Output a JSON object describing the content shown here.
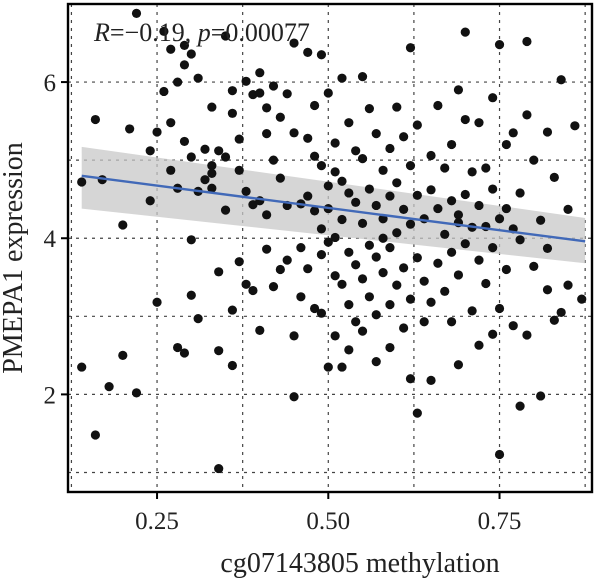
{
  "chart_data": {
    "type": "scatter",
    "xlabel": "cg07143805 methylation",
    "ylabel": "PMEPA1 expression",
    "xlim": [
      0.12,
      0.885
    ],
    "ylim": [
      0.75,
      7.0
    ],
    "xticks": [
      0.25,
      0.5,
      0.75
    ],
    "xtick_labels": [
      "0.25",
      "0.50",
      "0.75"
    ],
    "yticks": [
      2,
      4,
      6
    ],
    "ytick_labels": [
      "2",
      "4",
      "6"
    ],
    "grid": true,
    "annotation": {
      "r_label": "R",
      "r_value": "=−0.19, ",
      "p_label": "p",
      "p_value": "=0.00077"
    },
    "fit": {
      "x": [
        0.14,
        0.875
      ],
      "y": [
        4.8,
        3.96
      ],
      "ci_lower": [
        4.38,
        3.68
      ],
      "ci_upper": [
        5.17,
        4.26
      ],
      "line_color": "#4169b8",
      "band_color": "#c8c8c8"
    },
    "point_color": "#111111",
    "points": [
      [
        0.14,
        4.72
      ],
      [
        0.14,
        2.35
      ],
      [
        0.16,
        5.52
      ],
      [
        0.16,
        1.48
      ],
      [
        0.17,
        4.75
      ],
      [
        0.18,
        2.1
      ],
      [
        0.2,
        2.5
      ],
      [
        0.2,
        4.17
      ],
      [
        0.21,
        5.4
      ],
      [
        0.22,
        2.02
      ],
      [
        0.22,
        6.88
      ],
      [
        0.24,
        5.12
      ],
      [
        0.24,
        4.48
      ],
      [
        0.25,
        3.18
      ],
      [
        0.25,
        5.36
      ],
      [
        0.26,
        6.65
      ],
      [
        0.26,
        5.88
      ],
      [
        0.27,
        5.48
      ],
      [
        0.27,
        6.42
      ],
      [
        0.27,
        4.87
      ],
      [
        0.28,
        4.64
      ],
      [
        0.28,
        6.0
      ],
      [
        0.28,
        2.6
      ],
      [
        0.29,
        6.22
      ],
      [
        0.29,
        6.47
      ],
      [
        0.29,
        5.24
      ],
      [
        0.29,
        2.53
      ],
      [
        0.3,
        3.27
      ],
      [
        0.3,
        5.04
      ],
      [
        0.3,
        6.36
      ],
      [
        0.3,
        3.98
      ],
      [
        0.31,
        6.05
      ],
      [
        0.31,
        4.6
      ],
      [
        0.31,
        2.97
      ],
      [
        0.32,
        5.14
      ],
      [
        0.32,
        4.75
      ],
      [
        0.33,
        5.68
      ],
      [
        0.33,
        4.93
      ],
      [
        0.33,
        4.64
      ],
      [
        0.34,
        5.12
      ],
      [
        0.34,
        3.57
      ],
      [
        0.34,
        2.56
      ],
      [
        0.34,
        1.05
      ],
      [
        0.35,
        6.59
      ],
      [
        0.35,
        5.04
      ],
      [
        0.35,
        4.36
      ],
      [
        0.36,
        2.37
      ],
      [
        0.36,
        5.6
      ],
      [
        0.36,
        3.08
      ],
      [
        0.37,
        5.27
      ],
      [
        0.37,
        3.7
      ],
      [
        0.37,
        4.87
      ],
      [
        0.38,
        4.6
      ],
      [
        0.38,
        6.01
      ],
      [
        0.38,
        3.41
      ],
      [
        0.39,
        5.84
      ],
      [
        0.39,
        4.43
      ],
      [
        0.39,
        3.33
      ],
      [
        0.4,
        6.12
      ],
      [
        0.4,
        5.86
      ],
      [
        0.4,
        4.48
      ],
      [
        0.4,
        2.82
      ],
      [
        0.41,
        5.67
      ],
      [
        0.41,
        5.34
      ],
      [
        0.41,
        4.3
      ],
      [
        0.41,
        3.86
      ],
      [
        0.42,
        5.95
      ],
      [
        0.42,
        5.0
      ],
      [
        0.42,
        3.38
      ],
      [
        0.43,
        5.55
      ],
      [
        0.43,
        4.77
      ],
      [
        0.43,
        3.6
      ],
      [
        0.44,
        5.85
      ],
      [
        0.44,
        4.42
      ],
      [
        0.44,
        3.72
      ],
      [
        0.45,
        6.5
      ],
      [
        0.45,
        5.35
      ],
      [
        0.45,
        2.75
      ],
      [
        0.45,
        1.97
      ],
      [
        0.46,
        4.44
      ],
      [
        0.46,
        3.88
      ],
      [
        0.46,
        3.25
      ],
      [
        0.47,
        6.38
      ],
      [
        0.47,
        5.28
      ],
      [
        0.47,
        4.54
      ],
      [
        0.47,
        3.61
      ],
      [
        0.48,
        5.05
      ],
      [
        0.48,
        4.35
      ],
      [
        0.48,
        3.1
      ],
      [
        0.48,
        5.7
      ],
      [
        0.49,
        4.93
      ],
      [
        0.49,
        4.12
      ],
      [
        0.49,
        3.79
      ],
      [
        0.49,
        3.04
      ],
      [
        0.5,
        5.86
      ],
      [
        0.5,
        4.67
      ],
      [
        0.5,
        4.38
      ],
      [
        0.5,
        3.95
      ],
      [
        0.5,
        2.35
      ],
      [
        0.51,
        5.22
      ],
      [
        0.51,
        4.85
      ],
      [
        0.51,
        4.01
      ],
      [
        0.51,
        3.52
      ],
      [
        0.51,
        2.75
      ],
      [
        0.52,
        6.05
      ],
      [
        0.52,
        4.73
      ],
      [
        0.52,
        4.24
      ],
      [
        0.52,
        3.41
      ],
      [
        0.52,
        2.35
      ],
      [
        0.53,
        5.48
      ],
      [
        0.53,
        4.58
      ],
      [
        0.53,
        3.82
      ],
      [
        0.53,
        3.15
      ],
      [
        0.53,
        2.57
      ],
      [
        0.54,
        5.12
      ],
      [
        0.54,
        4.46
      ],
      [
        0.54,
        3.66
      ],
      [
        0.54,
        2.93
      ],
      [
        0.55,
        6.07
      ],
      [
        0.55,
        5.02
      ],
      [
        0.55,
        4.19
      ],
      [
        0.55,
        3.48
      ],
      [
        0.55,
        2.81
      ],
      [
        0.56,
        5.66
      ],
      [
        0.56,
        4.63
      ],
      [
        0.56,
        3.91
      ],
      [
        0.56,
        3.25
      ],
      [
        0.57,
        5.34
      ],
      [
        0.57,
        4.42
      ],
      [
        0.57,
        3.76
      ],
      [
        0.57,
        3.02
      ],
      [
        0.57,
        2.42
      ],
      [
        0.58,
        4.87
      ],
      [
        0.58,
        4.25
      ],
      [
        0.58,
        3.56
      ],
      [
        0.59,
        5.15
      ],
      [
        0.59,
        4.54
      ],
      [
        0.59,
        3.88
      ],
      [
        0.59,
        3.15
      ],
      [
        0.59,
        2.6
      ],
      [
        0.6,
        5.68
      ],
      [
        0.6,
        4.71
      ],
      [
        0.6,
        4.07
      ],
      [
        0.6,
        3.4
      ],
      [
        0.61,
        5.3
      ],
      [
        0.61,
        4.37
      ],
      [
        0.61,
        3.62
      ],
      [
        0.61,
        2.85
      ],
      [
        0.62,
        6.44
      ],
      [
        0.62,
        4.93
      ],
      [
        0.62,
        4.18
      ],
      [
        0.62,
        3.22
      ],
      [
        0.62,
        2.2
      ],
      [
        0.63,
        5.45
      ],
      [
        0.63,
        4.55
      ],
      [
        0.63,
        3.75
      ],
      [
        0.63,
        1.76
      ],
      [
        0.64,
        4.25
      ],
      [
        0.64,
        3.45
      ],
      [
        0.64,
        2.93
      ],
      [
        0.65,
        5.06
      ],
      [
        0.65,
        4.62
      ],
      [
        0.65,
        3.18
      ],
      [
        0.65,
        2.18
      ],
      [
        0.66,
        5.7
      ],
      [
        0.66,
        4.38
      ],
      [
        0.66,
        3.68
      ],
      [
        0.67,
        4.9
      ],
      [
        0.67,
        4.05
      ],
      [
        0.67,
        3.32
      ],
      [
        0.68,
        5.2
      ],
      [
        0.68,
        4.48
      ],
      [
        0.68,
        3.82
      ],
      [
        0.68,
        2.93
      ],
      [
        0.69,
        5.9
      ],
      [
        0.69,
        4.2
      ],
      [
        0.69,
        3.53
      ],
      [
        0.69,
        2.38
      ],
      [
        0.7,
        5.52
      ],
      [
        0.7,
        4.56
      ],
      [
        0.7,
        3.93
      ],
      [
        0.7,
        6.64
      ],
      [
        0.71,
        4.85
      ],
      [
        0.71,
        4.14
      ],
      [
        0.71,
        3.07
      ],
      [
        0.72,
        5.48
      ],
      [
        0.72,
        4.42
      ],
      [
        0.72,
        3.72
      ],
      [
        0.72,
        2.63
      ],
      [
        0.73,
        4.9
      ],
      [
        0.73,
        4.15
      ],
      [
        0.73,
        3.42
      ],
      [
        0.74,
        5.8
      ],
      [
        0.74,
        4.63
      ],
      [
        0.74,
        3.88
      ],
      [
        0.74,
        2.77
      ],
      [
        0.75,
        6.48
      ],
      [
        0.75,
        4.25
      ],
      [
        0.75,
        3.1
      ],
      [
        0.75,
        1.23
      ],
      [
        0.76,
        5.2
      ],
      [
        0.76,
        4.38
      ],
      [
        0.76,
        3.6
      ],
      [
        0.77,
        5.35
      ],
      [
        0.77,
        4.12
      ],
      [
        0.77,
        2.88
      ],
      [
        0.78,
        4.58
      ],
      [
        0.78,
        3.98
      ],
      [
        0.78,
        1.85
      ],
      [
        0.79,
        6.52
      ],
      [
        0.79,
        5.58
      ],
      [
        0.79,
        2.76
      ],
      [
        0.8,
        5.0
      ],
      [
        0.8,
        3.64
      ],
      [
        0.81,
        4.23
      ],
      [
        0.81,
        1.98
      ],
      [
        0.82,
        5.36
      ],
      [
        0.82,
        3.87
      ],
      [
        0.82,
        3.34
      ],
      [
        0.83,
        4.78
      ],
      [
        0.83,
        2.95
      ],
      [
        0.84,
        6.03
      ],
      [
        0.84,
        3.05
      ],
      [
        0.85,
        4.37
      ],
      [
        0.85,
        3.4
      ],
      [
        0.86,
        5.44
      ],
      [
        0.87,
        3.22
      ],
      [
        0.49,
        6.35
      ],
      [
        0.36,
        5.89
      ],
      [
        0.58,
        4.0
      ],
      [
        0.69,
        4.3
      ],
      [
        0.33,
        4.83
      ]
    ]
  }
}
